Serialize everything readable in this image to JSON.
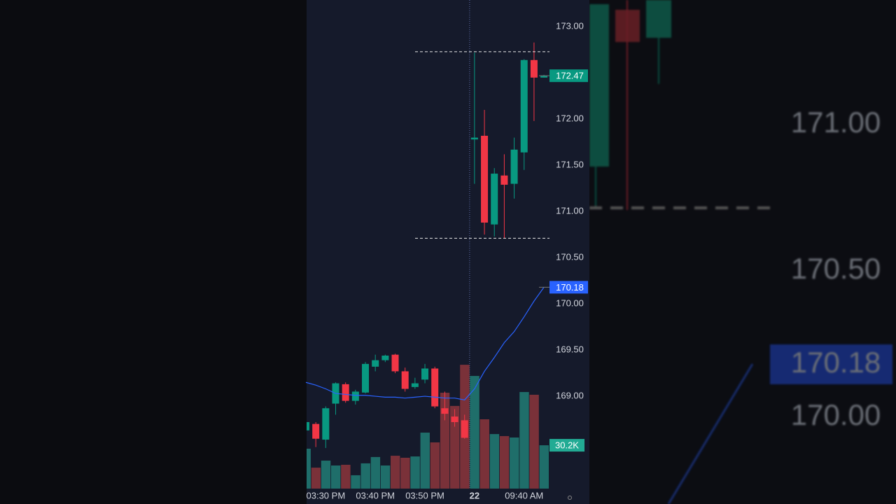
{
  "chart_data": {
    "type": "candlestick",
    "categories": [
      null,
      null,
      "03:30 PM",
      null,
      null,
      null,
      null,
      "03:40 PM",
      null,
      null,
      null,
      null,
      "03:50 PM",
      null,
      null,
      null,
      null,
      "22",
      null,
      null,
      null,
      null,
      "09:40 AM",
      null,
      null
    ],
    "open": [
      168.63,
      168.7,
      168.53,
      168.92,
      169.13,
      168.95,
      169.04,
      169.32,
      169.39,
      169.45,
      169.27,
      169.1,
      169.18,
      169.3,
      168.87,
      168.78,
      168.74,
      171.78,
      171.82,
      170.86,
      171.39,
      171.3,
      171.64,
      172.64,
      172.45
    ],
    "high": [
      168.72,
      168.72,
      168.89,
      169.15,
      169.15,
      169.07,
      169.37,
      169.45,
      169.45,
      169.46,
      169.31,
      169.2,
      169.35,
      169.32,
      169.05,
      168.86,
      168.8,
      172.72,
      172.1,
      171.47,
      171.62,
      171.8,
      172.65,
      172.83,
      172.48
    ],
    "low": [
      168.63,
      168.45,
      168.44,
      168.8,
      168.93,
      168.91,
      169.03,
      169.27,
      169.37,
      169.25,
      169.05,
      169.08,
      169.14,
      168.87,
      168.74,
      168.67,
      168.54,
      171.3,
      170.75,
      170.73,
      170.71,
      171.14,
      171.45,
      171.98,
      172.45
    ],
    "close": [
      168.72,
      168.54,
      168.87,
      169.14,
      168.95,
      169.05,
      169.35,
      169.39,
      169.44,
      169.27,
      169.08,
      169.14,
      169.3,
      168.89,
      168.81,
      168.72,
      168.55,
      171.8,
      170.88,
      171.41,
      171.29,
      171.67,
      172.64,
      172.45,
      172.47
    ],
    "up_color": "#089981",
    "down_color": "#f23645",
    "ma": {
      "color": "#2962ff",
      "values": [
        169.15,
        169.12,
        169.08,
        169.03,
        169.02,
        169.01,
        169.01,
        169.0,
        168.99,
        168.99,
        168.98,
        168.99,
        169.0,
        168.99,
        168.98,
        168.98,
        168.96,
        169.08,
        169.27,
        169.42,
        169.58,
        169.7,
        169.86,
        170.03,
        170.18
      ]
    },
    "volume": {
      "values": [
        27800,
        14600,
        19500,
        16100,
        16600,
        9300,
        17600,
        22000,
        16100,
        22900,
        21500,
        22400,
        39000,
        32200,
        66800,
        57600,
        86300,
        78500,
        48300,
        38000,
        36600,
        35600,
        67300,
        65400,
        30200
      ],
      "ylim": [
        0,
        100000
      ],
      "up_color": "#1f6e6a",
      "down_color": "#7a3139"
    },
    "ylim": [
      168,
      173.29
    ],
    "yticks": [
      {
        "value": 169,
        "label": "169.00"
      },
      {
        "value": 169.5,
        "label": "169.50"
      },
      {
        "value": 170,
        "label": "170.00"
      },
      {
        "value": 170.5,
        "label": "170.50"
      },
      {
        "value": 171,
        "label": "171.00"
      },
      {
        "value": 171.5,
        "label": "171.50"
      },
      {
        "value": 172,
        "label": "172.00"
      },
      {
        "value": 173,
        "label": "173.00"
      }
    ],
    "dashed_levels": [
      172.73,
      170.71
    ],
    "price_badges": [
      {
        "value": 172.47,
        "label": "172.47",
        "color": "#089981"
      },
      {
        "value": 170.18,
        "label": "170.18",
        "color": "#2962ff"
      }
    ],
    "volume_badge": {
      "value": 30200,
      "label": "30.2K",
      "color": "#22ab94"
    }
  },
  "overlay": {
    "labels": [
      {
        "value": 171,
        "label": "171.00"
      },
      {
        "value": 170.5,
        "label": "170.50"
      },
      {
        "value": 170.18,
        "label": "170.18"
      },
      {
        "value": 170,
        "label": "170.00"
      }
    ]
  }
}
